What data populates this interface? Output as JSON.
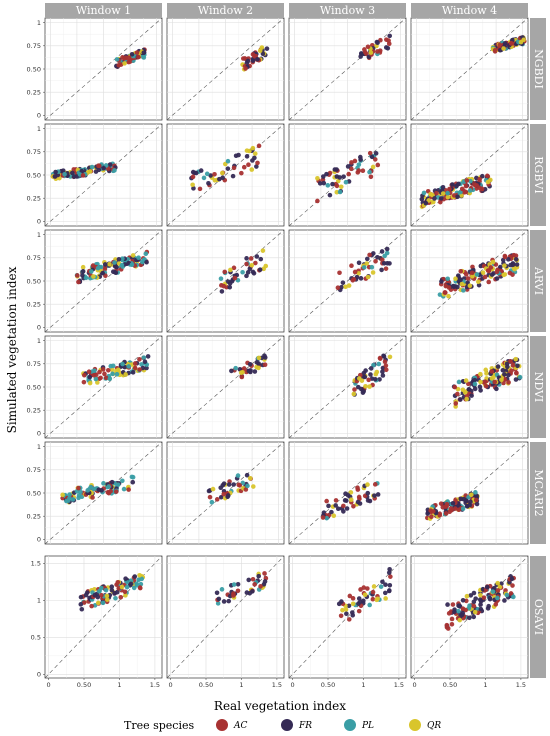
{
  "chart_data": {
    "type": "scatter",
    "xlabel": "Real vegetation index",
    "ylabel": "Simulated vegetation index",
    "columns": [
      "Window 1",
      "Window 2",
      "Window 3",
      "Window 4"
    ],
    "rows": [
      "NGBDI",
      "RGBVI",
      "ARVI",
      "NDVI",
      "MCARI2",
      "OSAVI"
    ],
    "reference_line": "y = x (dashed)",
    "grid": true,
    "legend": {
      "title": "Tree species",
      "placement": "bottom",
      "items": [
        {
          "name": "AC",
          "color": "#a83232"
        },
        {
          "name": "FR",
          "color": "#352a55"
        },
        {
          "name": "PL",
          "color": "#3a9ea5"
        },
        {
          "name": "QR",
          "color": "#d9c52c"
        }
      ]
    },
    "axis_ranges": {
      "NGBDI": {
        "xlim": [
          -0.05,
          1.05
        ],
        "ylim": [
          -0.05,
          1.05
        ]
      },
      "RGBVI": {
        "xlim": [
          -0.05,
          1.05
        ],
        "ylim": [
          -0.05,
          1.05
        ]
      },
      "ARVI": {
        "xlim": [
          -0.05,
          1.05
        ],
        "ylim": [
          -0.05,
          1.05
        ]
      },
      "NDVI": {
        "xlim": [
          -0.05,
          1.05
        ],
        "ylim": [
          -0.05,
          1.05
        ]
      },
      "MCARI2": {
        "xlim": [
          -0.05,
          1.05
        ],
        "ylim": [
          -0.05,
          1.05
        ]
      },
      "OSAVI": {
        "xlim": [
          -0.05,
          1.6
        ],
        "ylim": [
          -0.05,
          1.6
        ]
      }
    },
    "x_ticks": {
      "values": [
        0,
        0.25,
        0.5,
        0.75,
        1
      ],
      "labels": [
        "0",
        "0.25",
        "0.50",
        "0.75",
        "1"
      ],
      "osavi_values": [
        0,
        0.5,
        1,
        1.5
      ],
      "osavi_labels": [
        "0",
        "0.50",
        "1",
        "1.5"
      ]
    },
    "y_ticks": {
      "values": [
        0,
        0.25,
        0.5,
        0.75,
        1
      ],
      "labels": [
        "0",
        "0.25",
        "0.50",
        "0.75",
        "1"
      ],
      "osavi_values": [
        0,
        0.5,
        1,
        1.5
      ],
      "osavi_labels": [
        "0",
        "0.5",
        "1",
        "1.5"
      ]
    },
    "clusters": {
      "NGBDI": [
        {
          "x": [
            0.62,
            0.9
          ],
          "y": [
            0.52,
            0.72
          ],
          "mix": [
            0.3,
            0.3,
            0.22,
            0.18
          ],
          "n": 70
        },
        {
          "x": [
            0.66,
            0.9
          ],
          "y": [
            0.48,
            0.78
          ],
          "mix": [
            0.4,
            0.35,
            0.05,
            0.2
          ],
          "n": 34
        },
        {
          "x": [
            0.62,
            0.9
          ],
          "y": [
            0.55,
            0.88
          ],
          "mix": [
            0.35,
            0.45,
            0.05,
            0.15
          ],
          "n": 36
        },
        {
          "x": [
            0.72,
            1.02
          ],
          "y": [
            0.68,
            0.85
          ],
          "mix": [
            0.35,
            0.35,
            0.15,
            0.15
          ],
          "n": 90
        }
      ],
      "RGBVI": [
        {
          "x": [
            0.02,
            0.62
          ],
          "y": [
            0.44,
            0.64
          ],
          "mix": [
            0.25,
            0.3,
            0.25,
            0.2
          ],
          "n": 95
        },
        {
          "x": [
            0.18,
            0.82
          ],
          "y": [
            0.3,
            0.82
          ],
          "mix": [
            0.35,
            0.4,
            0.1,
            0.15
          ],
          "n": 48
        },
        {
          "x": [
            0.18,
            0.82
          ],
          "y": [
            0.18,
            0.8
          ],
          "mix": [
            0.35,
            0.4,
            0.1,
            0.15
          ],
          "n": 56
        },
        {
          "x": [
            0.05,
            0.7
          ],
          "y": [
            0.15,
            0.52
          ],
          "mix": [
            0.35,
            0.35,
            0.15,
            0.15
          ],
          "n": 130
        }
      ],
      "ARVI": [
        {
          "x": [
            0.25,
            0.92
          ],
          "y": [
            0.48,
            0.82
          ],
          "mix": [
            0.25,
            0.25,
            0.35,
            0.15
          ],
          "n": 110
        },
        {
          "x": [
            0.45,
            0.88
          ],
          "y": [
            0.35,
            0.88
          ],
          "mix": [
            0.35,
            0.4,
            0.1,
            0.15
          ],
          "n": 40
        },
        {
          "x": [
            0.4,
            0.9
          ],
          "y": [
            0.35,
            0.9
          ],
          "mix": [
            0.35,
            0.4,
            0.1,
            0.15
          ],
          "n": 48
        },
        {
          "x": [
            0.22,
            0.95
          ],
          "y": [
            0.3,
            0.82
          ],
          "mix": [
            0.35,
            0.35,
            0.1,
            0.2
          ],
          "n": 150
        }
      ],
      "NDVI": [
        {
          "x": [
            0.3,
            0.92
          ],
          "y": [
            0.5,
            0.85
          ],
          "mix": [
            0.2,
            0.25,
            0.35,
            0.2
          ],
          "n": 90
        },
        {
          "x": [
            0.55,
            0.88
          ],
          "y": [
            0.55,
            0.85
          ],
          "mix": [
            0.35,
            0.4,
            0.1,
            0.15
          ],
          "n": 34
        },
        {
          "x": [
            0.55,
            0.9
          ],
          "y": [
            0.35,
            0.9
          ],
          "mix": [
            0.3,
            0.45,
            0.15,
            0.1
          ],
          "n": 50
        },
        {
          "x": [
            0.35,
            0.98
          ],
          "y": [
            0.28,
            0.85
          ],
          "mix": [
            0.3,
            0.35,
            0.15,
            0.2
          ],
          "n": 140
        }
      ],
      "MCARI2": [
        {
          "x": [
            0.1,
            0.78
          ],
          "y": [
            0.38,
            0.68
          ],
          "mix": [
            0.25,
            0.25,
            0.35,
            0.15
          ],
          "n": 90
        },
        {
          "x": [
            0.3,
            0.8
          ],
          "y": [
            0.35,
            0.78
          ],
          "mix": [
            0.35,
            0.4,
            0.1,
            0.15
          ],
          "n": 40
        },
        {
          "x": [
            0.25,
            0.8
          ],
          "y": [
            0.2,
            0.65
          ],
          "mix": [
            0.35,
            0.4,
            0.1,
            0.15
          ],
          "n": 50
        },
        {
          "x": [
            0.1,
            0.58
          ],
          "y": [
            0.2,
            0.52
          ],
          "mix": [
            0.35,
            0.35,
            0.1,
            0.2
          ],
          "n": 110
        }
      ],
      "OSAVI": [
        {
          "x": [
            0.45,
            1.35
          ],
          "y": [
            0.85,
            1.38
          ],
          "mix": [
            0.25,
            0.25,
            0.35,
            0.15
          ],
          "n": 100
        },
        {
          "x": [
            0.65,
            1.35
          ],
          "y": [
            0.9,
            1.4
          ],
          "mix": [
            0.35,
            0.4,
            0.1,
            0.15
          ],
          "n": 40
        },
        {
          "x": [
            0.65,
            1.4
          ],
          "y": [
            0.62,
            1.45
          ],
          "mix": [
            0.3,
            0.4,
            0.15,
            0.15
          ],
          "n": 50
        },
        {
          "x": [
            0.45,
            1.4
          ],
          "y": [
            0.6,
            1.35
          ],
          "mix": [
            0.3,
            0.35,
            0.15,
            0.2
          ],
          "n": 130
        }
      ]
    }
  }
}
